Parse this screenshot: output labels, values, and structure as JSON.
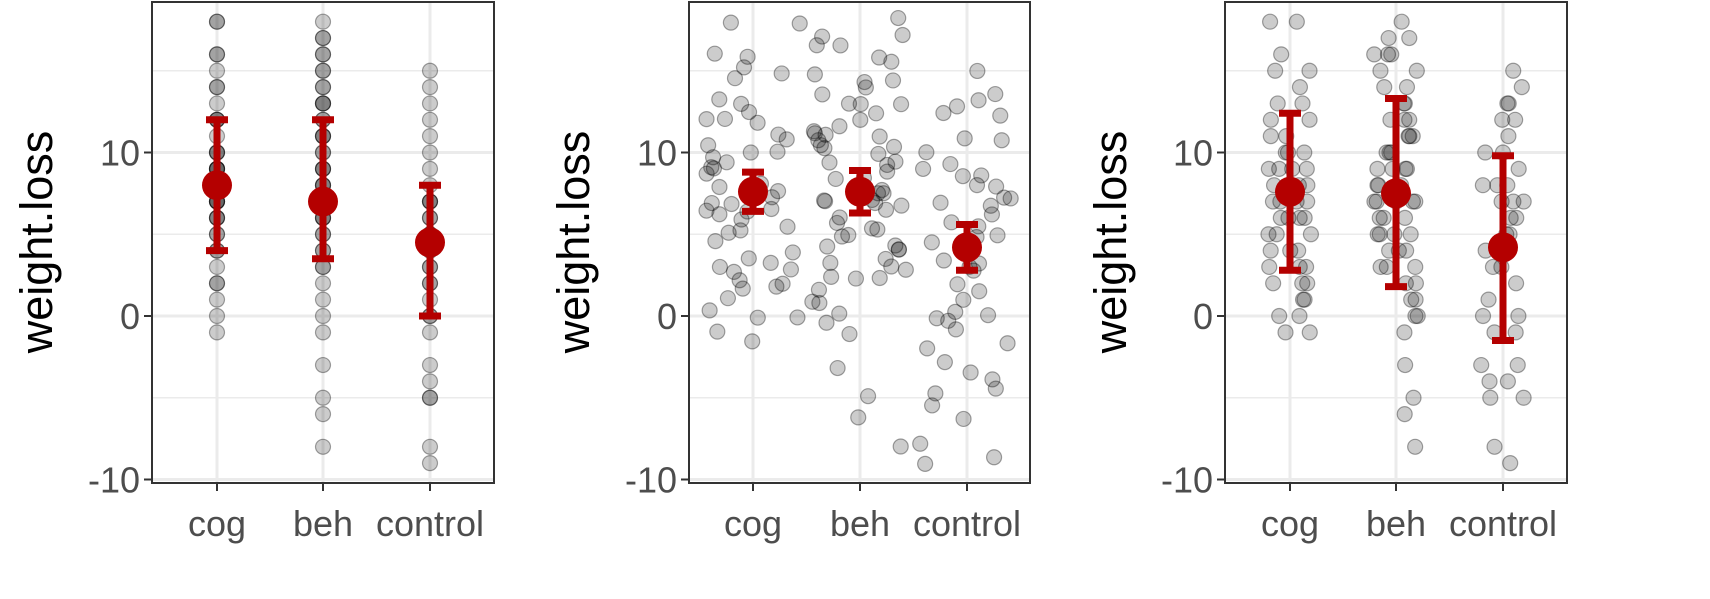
{
  "colors": {
    "point": "#000000",
    "summary": "#b40000",
    "grid": "#ebebeb",
    "frame": "#333333",
    "tick_text": "#4d4d4d",
    "axis_title": "#000000"
  },
  "chart_data": [
    {
      "type": "scatter",
      "panel": "left",
      "xlabel": "",
      "ylabel": "weight.loss",
      "categories": [
        "cog",
        "beh",
        "control"
      ],
      "ylim": [
        -10.2,
        19
      ],
      "yticks": [
        -10,
        0,
        10
      ],
      "grid": true,
      "point_alpha": 0.2,
      "jitter": false,
      "points": {
        "cog": [
          18,
          16,
          15,
          14,
          13,
          12,
          12,
          11,
          10,
          10,
          9,
          9,
          9,
          8,
          8,
          8,
          7,
          7,
          7,
          6,
          6,
          5,
          5,
          4,
          4,
          3,
          2,
          2,
          1,
          0,
          -1,
          18,
          16,
          14,
          12,
          10,
          9,
          8,
          7,
          6
        ],
        "beh": [
          18,
          17,
          16,
          16,
          15,
          14,
          14,
          13,
          13,
          12,
          12,
          11,
          11,
          10,
          10,
          9,
          9,
          8,
          8,
          7,
          7,
          7,
          6,
          6,
          5,
          5,
          4,
          4,
          3,
          3,
          2,
          1,
          0,
          -1,
          -3,
          -5,
          -6,
          -8,
          17,
          15,
          13,
          11,
          9,
          8,
          6
        ],
        "control": [
          15,
          14,
          13,
          12,
          11,
          10,
          9,
          8,
          7,
          7,
          6,
          5,
          5,
          4,
          4,
          3,
          2,
          1,
          0,
          -1,
          -3,
          -4,
          -5,
          -5,
          -8,
          -9,
          7,
          6,
          5,
          3,
          2,
          0
        ]
      },
      "summary": [
        {
          "category": "cog",
          "mean": 8.0,
          "lower": 4.0,
          "upper": 12.0
        },
        {
          "category": "beh",
          "mean": 7.0,
          "lower": 3.5,
          "upper": 12.0
        },
        {
          "category": "control",
          "mean": 4.5,
          "lower": 0.0,
          "upper": 8.0
        }
      ]
    },
    {
      "type": "scatter",
      "panel": "middle",
      "xlabel": "",
      "ylabel": "weight.loss",
      "categories": [
        "cog",
        "beh",
        "control"
      ],
      "ylim": [
        -10.2,
        19
      ],
      "yticks": [
        -10,
        0,
        10
      ],
      "grid": true,
      "point_alpha": 0.2,
      "jitter": true,
      "points": {
        "cog": [
          18,
          18,
          16,
          15.8,
          15,
          15,
          14.8,
          13.5,
          13,
          12.5,
          12.3,
          12,
          12,
          11,
          11,
          10.5,
          10,
          10,
          9.8,
          9.5,
          9,
          9,
          8.5,
          8.2,
          8,
          7.8,
          7.5,
          7,
          7,
          6.8,
          6.5,
          6.2,
          6,
          5.8,
          5.5,
          5,
          5,
          4.8,
          4,
          3.8,
          3.5,
          3,
          3,
          2.5,
          2.2,
          2,
          2,
          1.5,
          1,
          0.5,
          0,
          -0.3,
          -0.8,
          -1.3
        ],
        "beh": [
          18,
          17,
          17,
          16.5,
          16.3,
          16,
          15.5,
          15,
          14.5,
          14.2,
          14,
          13.5,
          13.2,
          13,
          12.8,
          12.5,
          12,
          11.8,
          11.5,
          11.2,
          11,
          11,
          10.8,
          10.5,
          10.2,
          10,
          9.8,
          9.5,
          9.2,
          9,
          8.8,
          8.5,
          8.2,
          8,
          7.8,
          7.5,
          7.2,
          7,
          7,
          6.8,
          6.5,
          6.2,
          6,
          5.8,
          5.5,
          5.2,
          5,
          4.8,
          4.5,
          4.2,
          4,
          3.8,
          3.5,
          3.2,
          3,
          2.8,
          2.5,
          2.2,
          2,
          1.5,
          0.8,
          0.5,
          0,
          -0.5,
          -1.2,
          -3,
          -5,
          -6,
          -8
        ],
        "control": [
          15,
          13.8,
          13.2,
          13,
          12.2,
          12,
          11,
          10.8,
          10,
          9.2,
          9,
          8.8,
          8.5,
          8,
          7.8,
          7.2,
          7,
          6.8,
          6.5,
          6.2,
          6,
          5.5,
          5,
          4.8,
          4.5,
          4,
          3.5,
          3,
          2.8,
          2.5,
          2,
          1.5,
          1,
          0.5,
          0,
          -0.3,
          -0.5,
          -0.8,
          -1.5,
          -2,
          -3,
          -3.5,
          -4,
          -4.5,
          -5,
          -5.3,
          -6.5,
          -8,
          -8.5,
          -9
        ]
      },
      "summary": [
        {
          "category": "cog",
          "mean": 7.6,
          "lower": 6.4,
          "upper": 8.8
        },
        {
          "category": "beh",
          "mean": 7.6,
          "lower": 6.3,
          "upper": 8.9
        },
        {
          "category": "control",
          "mean": 4.2,
          "lower": 2.8,
          "upper": 5.6
        }
      ]
    },
    {
      "type": "scatter",
      "panel": "right",
      "xlabel": "",
      "ylabel": "weight.loss",
      "categories": [
        "cog",
        "beh",
        "control"
      ],
      "ylim": [
        -10.2,
        19
      ],
      "yticks": [
        -10,
        0,
        10
      ],
      "grid": true,
      "point_alpha": 0.2,
      "jitter": true,
      "points": {
        "cog": [
          18,
          18,
          16,
          15,
          15,
          14,
          13,
          13,
          12,
          12,
          11,
          11,
          10,
          10,
          10,
          9,
          9,
          9,
          9,
          8,
          8,
          8,
          8,
          7,
          7,
          7,
          7,
          6,
          6,
          6,
          6,
          5,
          5,
          5,
          4,
          4,
          4,
          3,
          3,
          3,
          2,
          2,
          2,
          1,
          1,
          0,
          0,
          -1,
          -1
        ],
        "beh": [
          18,
          17,
          17,
          16,
          16,
          16,
          15,
          15,
          14,
          14,
          13,
          13,
          12,
          12,
          12,
          11,
          11,
          11,
          10,
          10,
          10,
          9,
          9,
          9,
          9,
          8,
          8,
          8,
          7,
          7,
          7,
          7,
          7,
          6,
          6,
          6,
          5,
          5,
          5,
          5,
          4,
          4,
          4,
          3,
          3,
          3,
          2,
          2,
          1,
          1,
          0,
          0,
          -1,
          -3,
          -5,
          -6,
          -8
        ],
        "control": [
          15,
          14,
          13,
          13,
          12,
          12,
          11,
          10,
          10,
          9,
          8,
          8,
          8,
          7,
          7,
          7,
          6,
          6,
          5,
          5,
          4,
          4,
          3,
          3,
          2,
          1,
          0,
          0,
          -1,
          -1,
          -3,
          -3,
          -4,
          -4,
          -5,
          -5,
          -8,
          -9
        ]
      },
      "summary": [
        {
          "category": "cog",
          "mean": 7.6,
          "lower": 2.8,
          "upper": 12.4
        },
        {
          "category": "beh",
          "mean": 7.5,
          "lower": 1.8,
          "upper": 13.3
        },
        {
          "category": "control",
          "mean": 4.2,
          "lower": -1.5,
          "upper": 9.8
        }
      ]
    }
  ]
}
